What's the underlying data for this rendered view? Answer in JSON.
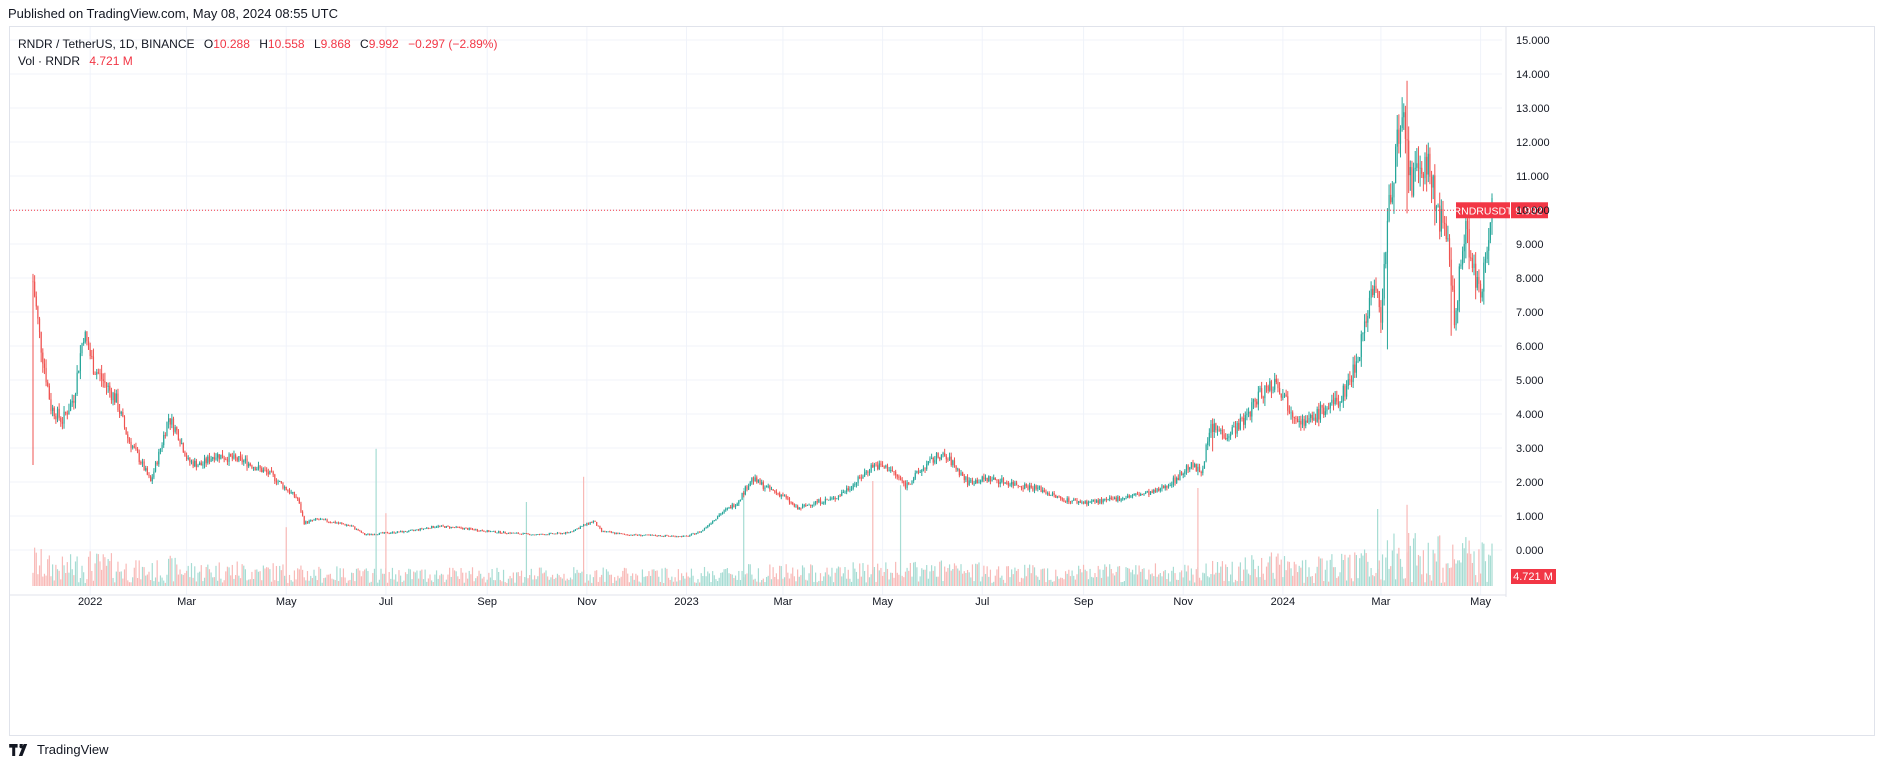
{
  "header": {
    "published": "Published on TradingView.com, May 08, 2024 08:55 UTC"
  },
  "legend": {
    "symbol": "RNDR / TetherUS, 1D, BINANCE",
    "o_label": "O",
    "o_value": "10.288",
    "h_label": "H",
    "h_value": "10.558",
    "l_label": "L",
    "l_value": "9.868",
    "c_label": "C",
    "c_value": "9.992",
    "change": "−0.297 (−2.89%)",
    "vol_label": "Vol · RNDR",
    "vol_value": "4.721 M"
  },
  "price_tag": {
    "symbol": "RNDRUSDT",
    "value": "9.992"
  },
  "volume_tag": {
    "value": "4.721 M"
  },
  "footer": {
    "brand": "TradingView"
  },
  "colors": {
    "up": "#26a69a",
    "down": "#ef5350",
    "up_vol": "#a6dcd3",
    "down_vol": "#f8b9b7",
    "accent": "#f23645",
    "grid": "#f0f3fa",
    "text": "#131722"
  },
  "chart_data": {
    "type": "candlestick",
    "symbol": "RNDR / TetherUS",
    "interval": "1D",
    "exchange": "BINANCE",
    "last_close": 9.992,
    "y_axis": {
      "ticks": [
        "0.000",
        "1.000",
        "2.000",
        "3.000",
        "4.000",
        "5.000",
        "6.000",
        "7.000",
        "8.000",
        "9.000",
        "10.000",
        "11.000",
        "12.000",
        "13.000",
        "14.000",
        "15.000"
      ],
      "ylim": [
        -1.0,
        15.5
      ]
    },
    "x_axis": {
      "ticks": [
        {
          "label": "2022",
          "date": "2022-01-01"
        },
        {
          "label": "Mar",
          "date": "2022-03-01"
        },
        {
          "label": "May",
          "date": "2022-05-01"
        },
        {
          "label": "Jul",
          "date": "2022-07-01"
        },
        {
          "label": "Sep",
          "date": "2022-09-01"
        },
        {
          "label": "Nov",
          "date": "2022-11-01"
        },
        {
          "label": "2023",
          "date": "2023-01-01"
        },
        {
          "label": "Mar",
          "date": "2023-03-01"
        },
        {
          "label": "May",
          "date": "2023-05-01"
        },
        {
          "label": "Jul",
          "date": "2023-07-01"
        },
        {
          "label": "Sep",
          "date": "2023-09-01"
        },
        {
          "label": "Nov",
          "date": "2023-11-01"
        },
        {
          "label": "2024",
          "date": "2024-01-01"
        },
        {
          "label": "Mar",
          "date": "2024-03-01"
        },
        {
          "label": "May",
          "date": "2024-05-01"
        }
      ],
      "start": "2021-11-27",
      "end": "2024-05-08"
    },
    "grid": true,
    "approx_close_path": [
      [
        "2021-11-27",
        7.9
      ],
      [
        "2021-12-01",
        6.3
      ],
      [
        "2021-12-08",
        4.2
      ],
      [
        "2021-12-15",
        3.8
      ],
      [
        "2021-12-22",
        4.5
      ],
      [
        "2021-12-28",
        6.4
      ],
      [
        "2022-01-03",
        5.4
      ],
      [
        "2022-01-10",
        4.9
      ],
      [
        "2022-01-17",
        4.4
      ],
      [
        "2022-01-24",
        3.3
      ],
      [
        "2022-02-01",
        2.6
      ],
      [
        "2022-02-07",
        2.0
      ],
      [
        "2022-02-12",
        2.8
      ],
      [
        "2022-02-18",
        3.9
      ],
      [
        "2022-02-24",
        3.4
      ],
      [
        "2022-03-02",
        2.6
      ],
      [
        "2022-03-10",
        2.5
      ],
      [
        "2022-03-18",
        2.8
      ],
      [
        "2022-03-28",
        2.7
      ],
      [
        "2022-04-06",
        2.6
      ],
      [
        "2022-04-14",
        2.4
      ],
      [
        "2022-04-22",
        2.2
      ],
      [
        "2022-05-01",
        1.8
      ],
      [
        "2022-05-08",
        1.5
      ],
      [
        "2022-05-12",
        0.8
      ],
      [
        "2022-05-20",
        0.9
      ],
      [
        "2022-06-01",
        0.8
      ],
      [
        "2022-06-10",
        0.7
      ],
      [
        "2022-06-18",
        0.45
      ],
      [
        "2022-07-01",
        0.5
      ],
      [
        "2022-07-15",
        0.55
      ],
      [
        "2022-08-01",
        0.7
      ],
      [
        "2022-08-15",
        0.65
      ],
      [
        "2022-09-01",
        0.55
      ],
      [
        "2022-09-15",
        0.5
      ],
      [
        "2022-10-01",
        0.45
      ],
      [
        "2022-10-20",
        0.5
      ],
      [
        "2022-11-05",
        0.85
      ],
      [
        "2022-11-10",
        0.55
      ],
      [
        "2022-11-25",
        0.45
      ],
      [
        "2022-12-15",
        0.42
      ],
      [
        "2023-01-01",
        0.4
      ],
      [
        "2023-01-10",
        0.55
      ],
      [
        "2023-01-20",
        1.0
      ],
      [
        "2023-02-01",
        1.4
      ],
      [
        "2023-02-10",
        2.1
      ],
      [
        "2023-02-20",
        1.8
      ],
      [
        "2023-03-01",
        1.6
      ],
      [
        "2023-03-10",
        1.2
      ],
      [
        "2023-03-20",
        1.4
      ],
      [
        "2023-04-01",
        1.5
      ],
      [
        "2023-04-15",
        2.0
      ],
      [
        "2023-04-25",
        2.5
      ],
      [
        "2023-05-05",
        2.4
      ],
      [
        "2023-05-15",
        1.9
      ],
      [
        "2023-05-28",
        2.5
      ],
      [
        "2023-06-05",
        2.8
      ],
      [
        "2023-06-12",
        2.6
      ],
      [
        "2023-06-22",
        2.0
      ],
      [
        "2023-07-05",
        2.1
      ],
      [
        "2023-07-20",
        1.95
      ],
      [
        "2023-08-05",
        1.8
      ],
      [
        "2023-08-18",
        1.5
      ],
      [
        "2023-09-01",
        1.4
      ],
      [
        "2023-09-15",
        1.45
      ],
      [
        "2023-10-01",
        1.6
      ],
      [
        "2023-10-15",
        1.7
      ],
      [
        "2023-10-28",
        2.1
      ],
      [
        "2023-11-05",
        2.5
      ],
      [
        "2023-11-12",
        2.3
      ],
      [
        "2023-11-18",
        3.6
      ],
      [
        "2023-11-28",
        3.4
      ],
      [
        "2023-12-08",
        3.8
      ],
      [
        "2023-12-18",
        4.6
      ],
      [
        "2023-12-28",
        5.0
      ],
      [
        "2024-01-05",
        4.2
      ],
      [
        "2024-01-15",
        3.7
      ],
      [
        "2024-01-25",
        4.1
      ],
      [
        "2024-02-05",
        4.4
      ],
      [
        "2024-02-15",
        5.5
      ],
      [
        "2024-02-25",
        7.8
      ],
      [
        "2024-03-01",
        7.0
      ],
      [
        "2024-03-05",
        9.5
      ],
      [
        "2024-03-10",
        11.8
      ],
      [
        "2024-03-15",
        12.3
      ],
      [
        "2024-03-20",
        10.7
      ],
      [
        "2024-03-28",
        11.5
      ],
      [
        "2024-04-05",
        10.0
      ],
      [
        "2024-04-12",
        8.6
      ],
      [
        "2024-04-15",
        6.8
      ],
      [
        "2024-04-22",
        9.5
      ],
      [
        "2024-04-28",
        8.0
      ],
      [
        "2024-05-01",
        7.2
      ],
      [
        "2024-05-04",
        9.0
      ],
      [
        "2024-05-08",
        9.992
      ]
    ],
    "spikes": [
      {
        "date": "2021-11-27",
        "low": 2.5,
        "high": 7.9
      },
      {
        "date": "2023-11-19",
        "low": 2.9,
        "high": 3.8
      },
      {
        "date": "2024-03-05",
        "low": 5.9,
        "high": 7.2
      },
      {
        "date": "2024-03-17",
        "low": 9.9,
        "high": 13.8
      },
      {
        "date": "2024-04-13",
        "low": 6.3,
        "high": 8.9
      }
    ],
    "volume": {
      "last": "4.721 M",
      "tall_bars": [
        {
          "date": "2022-05-01",
          "h": 0.42
        },
        {
          "date": "2022-06-25",
          "h": 0.98
        },
        {
          "date": "2022-07-01",
          "h": 0.52
        },
        {
          "date": "2022-09-25",
          "h": 0.6
        },
        {
          "date": "2022-10-30",
          "h": 0.78
        },
        {
          "date": "2023-02-05",
          "h": 0.7
        },
        {
          "date": "2023-04-25",
          "h": 0.75
        },
        {
          "date": "2023-05-12",
          "h": 0.72
        },
        {
          "date": "2023-11-10",
          "h": 0.7
        },
        {
          "date": "2024-02-28",
          "h": 0.55
        },
        {
          "date": "2024-03-17",
          "h": 0.58
        }
      ]
    }
  }
}
